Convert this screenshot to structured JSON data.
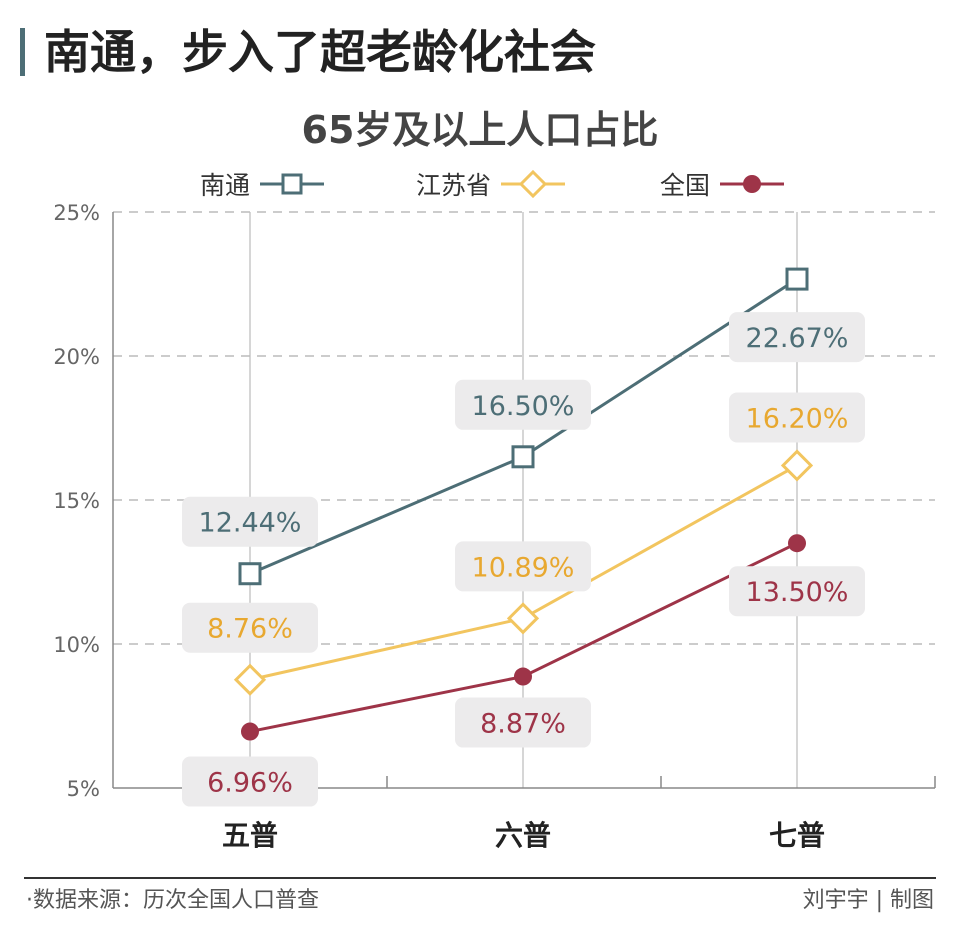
{
  "header": {
    "title": "南通，步入了超老龄化社会"
  },
  "footer": {
    "source": "·数据来源：历次全国人口普查",
    "credit": "刘宇宇 | 制图"
  },
  "colors": {
    "nantong": "#4d6e76",
    "jiangsu": "#f2c55f",
    "jiangsu_label": "#e8a830",
    "national": "#9e3448",
    "grid": "#bbbbbb",
    "label_bg": "#ecebec"
  },
  "chart_data": {
    "type": "line",
    "title": "65岁及以上人口占比",
    "categories": [
      "五普",
      "六普",
      "七普"
    ],
    "yticks": [
      "5%",
      "10%",
      "15%",
      "20%",
      "25%"
    ],
    "ylim": [
      5,
      25
    ],
    "grid": "horizontal-dashed",
    "legend_position": "top",
    "series": [
      {
        "name": "南通",
        "marker": "square-icon",
        "values": [
          12.44,
          16.5,
          22.67
        ],
        "labels": [
          "12.44%",
          "16.50%",
          "22.67%"
        ]
      },
      {
        "name": "江苏省",
        "marker": "diamond-icon",
        "values": [
          8.76,
          10.89,
          16.2
        ],
        "labels": [
          "8.76%",
          "10.89%",
          "16.20%"
        ]
      },
      {
        "name": "全国",
        "marker": "circle-icon",
        "values": [
          6.96,
          8.87,
          13.5
        ],
        "labels": [
          "6.96%",
          "8.87%",
          "13.50%"
        ]
      }
    ]
  }
}
